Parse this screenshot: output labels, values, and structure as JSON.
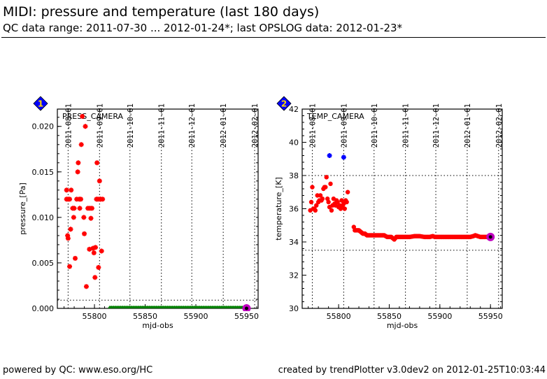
{
  "header": {
    "title": "MIDI: pressure and temperature (last 180 days)",
    "subtitle": "QC data range: 2011-07-30 ... 2012-01-24*; last OPSLOG data: 2012-01-23*"
  },
  "footer": {
    "left": "powered by QC: www.eso.org/HC",
    "right": "created by trendPlotter v3.0dev2 on 2012-01-25T10:03:44"
  },
  "colors": {
    "data_point": "#ff0000",
    "outlier_point": "#0000ff",
    "opslog_point": "#008000",
    "latest_marker": "#c000c0",
    "badge_fill": "#0000ff",
    "badge_text": "#ffd700"
  },
  "chart_data": [
    {
      "type": "scatter",
      "badge": "1",
      "title": "PRESS_CAMERA",
      "xlabel": "mjd-obs",
      "ylabel": "pressure_[Pa]",
      "xlim": [
        55763.4,
        55961.4
      ],
      "ylim": [
        0.0,
        0.0219
      ],
      "xticks": [
        55800,
        55850,
        55900,
        55950
      ],
      "xtick_labels": [
        "55800",
        "55850",
        "55900",
        "55950"
      ],
      "yticks": [
        0.0,
        0.005,
        0.01,
        0.015,
        0.02
      ],
      "ytick_labels": [
        "0.000",
        "0.005",
        "0.010",
        "0.015",
        "0.020"
      ],
      "date_ticks": [
        {
          "mjd": 55774,
          "label": "2011-08-01"
        },
        {
          "mjd": 55805,
          "label": "2011-09-01"
        },
        {
          "mjd": 55835,
          "label": "2011-10-01"
        },
        {
          "mjd": 55866,
          "label": "2011-11-01"
        },
        {
          "mjd": 55896,
          "label": "2011-12-01"
        },
        {
          "mjd": 55927,
          "label": "2012-01-01"
        },
        {
          "mjd": 55958,
          "label": "2012-02-01"
        }
      ],
      "hlines": [
        0.0009
      ],
      "grid": "dotted",
      "series": [
        {
          "name": "pressure",
          "marker": "star",
          "color": "#ff0000",
          "x": [
            55772.5,
            55774,
            55772.5,
            55775.5,
            55773.5,
            55774,
            55775.5,
            55776.5,
            55777,
            55778.5,
            55779.5,
            55780,
            55781,
            55782.5,
            55783.5,
            55784,
            55785,
            55785.5,
            55786.5,
            55787,
            55788,
            55789.5,
            55790,
            55791,
            55792,
            55793.5,
            55795,
            55795.5,
            55796.5,
            55797.5,
            55798.5,
            55799.5,
            55800.5,
            55801,
            55802,
            55802.5,
            55803.5,
            55804,
            55805,
            55805.5,
            55806,
            55807,
            55808
          ],
          "y": [
            0.013,
            0.012,
            0.012,
            0.012,
            0.008,
            0.0077,
            0.0046,
            0.0087,
            0.013,
            0.011,
            0.01,
            0.011,
            0.0055,
            0.012,
            0.015,
            0.016,
            0.012,
            0.011,
            0.012,
            0.018,
            0.0211,
            0.01,
            0.0082,
            0.02,
            0.0024,
            0.011,
            0.0065,
            0.011,
            0.0099,
            0.011,
            0.0066,
            0.0061,
            0.0034,
            0.0067,
            0.012,
            0.016,
            0.012,
            0.0045,
            0.014,
            0.012,
            0.012,
            0.0063,
            0.012
          ]
        },
        {
          "name": "opslog",
          "marker": "triangle",
          "color": "#008000",
          "x_range": [
            55815,
            55950
          ],
          "y_value": 0.0
        },
        {
          "name": "latest",
          "marker": "circle",
          "color": "#c000c0",
          "x": [
            55950
          ],
          "y": [
            0.0
          ]
        }
      ]
    },
    {
      "type": "scatter",
      "badge": "2",
      "title": "TEMP_CAMERA",
      "xlabel": "mjd-obs",
      "ylabel": "temperature_[K]",
      "xlim": [
        55764.0,
        55961.6
      ],
      "ylim": [
        30,
        42
      ],
      "xticks": [
        55800,
        55850,
        55900,
        55950
      ],
      "xtick_labels": [
        "55800",
        "55850",
        "55900",
        "55950"
      ],
      "yticks": [
        30,
        32,
        34,
        36,
        38,
        40,
        42
      ],
      "ytick_labels": [
        "30",
        "32",
        "34",
        "36",
        "38",
        "40",
        "42"
      ],
      "date_ticks": [
        {
          "mjd": 55774,
          "label": "2011-08-01"
        },
        {
          "mjd": 55805,
          "label": "2011-09-01"
        },
        {
          "mjd": 55835,
          "label": "2011-10-01"
        },
        {
          "mjd": 55866,
          "label": "2011-11-01"
        },
        {
          "mjd": 55896,
          "label": "2011-12-01"
        },
        {
          "mjd": 55927,
          "label": "2012-01-01"
        },
        {
          "mjd": 55958,
          "label": "2012-02-01"
        }
      ],
      "hlines": [
        38,
        33.5
      ],
      "grid": "dotted",
      "series": [
        {
          "name": "temperature_early",
          "marker": "circle",
          "color": "#ff0000",
          "x": [
            55772,
            55773,
            55774,
            55775,
            55776,
            55777,
            55778,
            55779,
            55780,
            55781,
            55782,
            55783,
            55784,
            55785,
            55786,
            55787,
            55788,
            55789,
            55790,
            55791,
            55792,
            55793,
            55794,
            55795,
            55796,
            55797,
            55798,
            55799,
            55800,
            55801,
            55802,
            55803,
            55804,
            55805,
            55806,
            55807,
            55808,
            55809
          ],
          "y": [
            35.9,
            36.4,
            37.3,
            36.0,
            36.0,
            35.9,
            36.2,
            36.8,
            36.4,
            36.5,
            36.8,
            36.5,
            36.6,
            37.2,
            37.3,
            37.3,
            37.9,
            36.6,
            36.4,
            36.1,
            37.5,
            35.9,
            36.2,
            36.6,
            36.3,
            36.2,
            36.5,
            36.4,
            36.1,
            36.2,
            36.0,
            36.5,
            36.2,
            36.3,
            36.0,
            36.5,
            36.4,
            37.0
          ]
        },
        {
          "name": "temperature_late",
          "marker": "circle",
          "color": "#ff0000",
          "x": [
            55815,
            55816,
            55818,
            55820,
            55822,
            55824,
            55826,
            55828,
            55830,
            55835,
            55840,
            55845,
            55848,
            55852,
            55854,
            55855,
            55857,
            55860,
            55865,
            55870,
            55875,
            55878,
            55880,
            55885,
            55890,
            55893,
            55895,
            55900,
            55905,
            55910,
            55915,
            55920,
            55925,
            55930,
            55933,
            55935,
            55940,
            55945,
            55950
          ],
          "y": [
            34.9,
            34.7,
            34.7,
            34.7,
            34.6,
            34.5,
            34.5,
            34.4,
            34.4,
            34.4,
            34.4,
            34.4,
            34.3,
            34.3,
            34.2,
            34.15,
            34.3,
            34.3,
            34.3,
            34.3,
            34.35,
            34.35,
            34.35,
            34.3,
            34.3,
            34.35,
            34.3,
            34.3,
            34.3,
            34.3,
            34.3,
            34.3,
            34.3,
            34.3,
            34.35,
            34.4,
            34.3,
            34.3,
            34.3
          ]
        },
        {
          "name": "outliers",
          "marker": "star",
          "color": "#0000ff",
          "x": [
            55791,
            55805
          ],
          "y": [
            39.2,
            39.1
          ]
        },
        {
          "name": "latest",
          "marker": "circle",
          "color": "#c000c0",
          "x": [
            55950
          ],
          "y": [
            34.3
          ]
        }
      ]
    }
  ]
}
